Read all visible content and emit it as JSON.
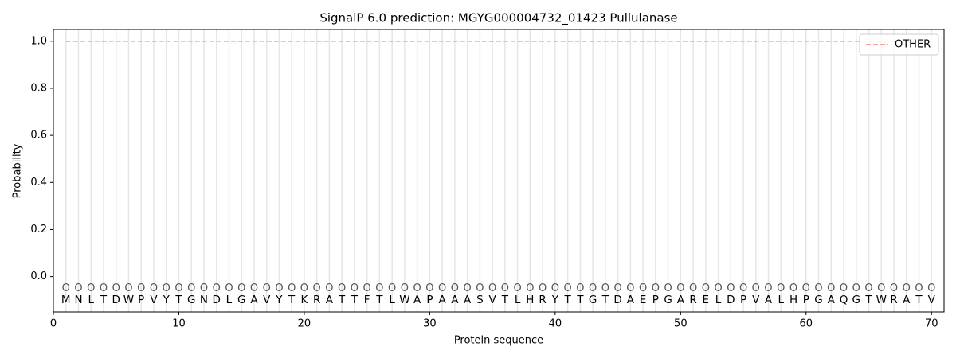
{
  "chart_data": {
    "type": "line",
    "title": "SignalP 6.0 prediction: MGYG000004732_01423 Pullulanase",
    "xlabel": "Protein sequence",
    "ylabel": "Probability",
    "x": [
      1,
      2,
      3,
      4,
      5,
      6,
      7,
      8,
      9,
      10,
      11,
      12,
      13,
      14,
      15,
      16,
      17,
      18,
      19,
      20,
      21,
      22,
      23,
      24,
      25,
      26,
      27,
      28,
      29,
      30,
      31,
      32,
      33,
      34,
      35,
      36,
      37,
      38,
      39,
      40,
      41,
      42,
      43,
      44,
      45,
      46,
      47,
      48,
      49,
      50,
      51,
      52,
      53,
      54,
      55,
      56,
      57,
      58,
      59,
      60,
      61,
      62,
      63,
      64,
      65,
      66,
      67,
      68,
      69,
      70
    ],
    "sequence": [
      "M",
      "N",
      "L",
      "T",
      "D",
      "W",
      "P",
      "V",
      "Y",
      "T",
      "G",
      "N",
      "D",
      "L",
      "G",
      "A",
      "V",
      "Y",
      "T",
      "K",
      "R",
      "A",
      "T",
      "T",
      "F",
      "T",
      "L",
      "W",
      "A",
      "P",
      "A",
      "A",
      "A",
      "S",
      "V",
      "T",
      "L",
      "H",
      "R",
      "Y",
      "T",
      "T",
      "G",
      "T",
      "D",
      "A",
      "E",
      "P",
      "G",
      "A",
      "R",
      "E",
      "L",
      "D",
      "P",
      "V",
      "A",
      "L",
      "H",
      "P",
      "G",
      "A",
      "Q",
      "G",
      "T",
      "W",
      "R",
      "A",
      "T",
      "V"
    ],
    "predicted_labels": [
      "O",
      "O",
      "O",
      "O",
      "O",
      "O",
      "O",
      "O",
      "O",
      "O",
      "O",
      "O",
      "O",
      "O",
      "O",
      "O",
      "O",
      "O",
      "O",
      "O",
      "O",
      "O",
      "O",
      "O",
      "O",
      "O",
      "O",
      "O",
      "O",
      "O",
      "O",
      "O",
      "O",
      "O",
      "O",
      "O",
      "O",
      "O",
      "O",
      "O",
      "O",
      "O",
      "O",
      "O",
      "O",
      "O",
      "O",
      "O",
      "O",
      "O",
      "O",
      "O",
      "O",
      "O",
      "O",
      "O",
      "O",
      "O",
      "O",
      "O",
      "O",
      "O",
      "O",
      "O",
      "O",
      "O",
      "O",
      "O",
      "O",
      "O"
    ],
    "series": [
      {
        "name": "OTHER",
        "color": "#f08080",
        "dashed": true,
        "values": [
          1,
          1,
          1,
          1,
          1,
          1,
          1,
          1,
          1,
          1,
          1,
          1,
          1,
          1,
          1,
          1,
          1,
          1,
          1,
          1,
          1,
          1,
          1,
          1,
          1,
          1,
          1,
          1,
          1,
          1,
          1,
          1,
          1,
          1,
          1,
          1,
          1,
          1,
          1,
          1,
          1,
          1,
          1,
          1,
          1,
          1,
          1,
          1,
          1,
          1,
          1,
          1,
          1,
          1,
          1,
          1,
          1,
          1,
          1,
          1,
          1,
          1,
          1,
          1,
          1,
          1,
          1,
          1,
          1,
          1
        ]
      }
    ],
    "xlim": [
      0,
      71
    ],
    "ylim": [
      -0.15,
      1.05
    ],
    "xticks": [
      0,
      10,
      20,
      30,
      40,
      50,
      60,
      70
    ],
    "yticks": [
      {
        "value": 0,
        "label": "0.0"
      },
      {
        "value": 0.2,
        "label": "0.2"
      },
      {
        "value": 0.4,
        "label": "0.4"
      },
      {
        "value": 0.6,
        "label": "0.6"
      },
      {
        "value": 0.8,
        "label": "0.8"
      },
      {
        "value": 1,
        "label": "1.0"
      }
    ],
    "legend": "upper right"
  }
}
